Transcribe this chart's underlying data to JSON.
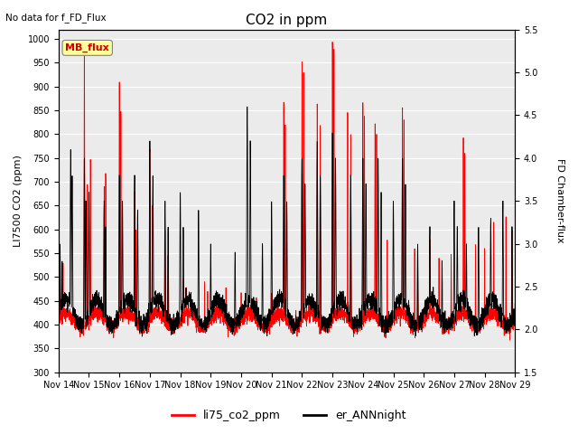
{
  "title": "CO2 in ppm",
  "subtitle": "No data for f_FD_Flux",
  "ylabel_left": "LI7500 CO2 (ppm)",
  "ylabel_right": "FD Chamber-flux",
  "ylim_left": [
    300,
    1020
  ],
  "ylim_right": [
    1.5,
    5.5
  ],
  "yticks_left": [
    300,
    350,
    400,
    450,
    500,
    550,
    600,
    650,
    700,
    750,
    800,
    850,
    900,
    950,
    1000
  ],
  "yticks_right": [
    1.5,
    2.0,
    2.5,
    3.0,
    3.5,
    4.0,
    4.5,
    5.0,
    5.5
  ],
  "line1_color": "red",
  "line2_color": "black",
  "mb_flux_label": "MB_flux",
  "mb_flux_color": "#cc0000",
  "mb_flux_bg": "#ffff99",
  "plot_bg": "#ffffff",
  "ax_bg": "#ebebeb",
  "figsize": [
    6.4,
    4.8
  ],
  "dpi": 100
}
